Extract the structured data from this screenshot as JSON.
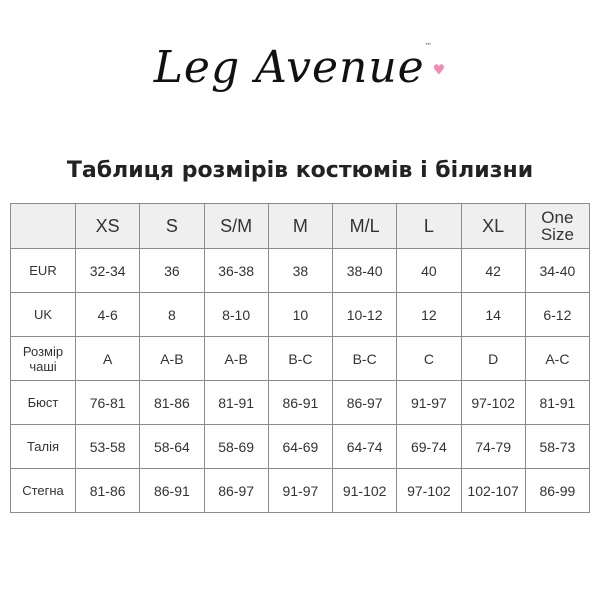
{
  "logo": {
    "text": "Leg Avenue",
    "trademark": "™",
    "heart_color": "#f08cb4"
  },
  "title": "Таблиця розмірів костюмів і білизни",
  "table": {
    "headers": [
      "",
      "XS",
      "S",
      "S/M",
      "M",
      "M/L",
      "L",
      "XL",
      "One Size"
    ],
    "rows": [
      {
        "label": "EUR",
        "values": [
          "32-34",
          "36",
          "36-38",
          "38",
          "38-40",
          "40",
          "42",
          "34-40"
        ]
      },
      {
        "label": "UK",
        "values": [
          "4-6",
          "8",
          "8-10",
          "10",
          "10-12",
          "12",
          "14",
          "6-12"
        ]
      },
      {
        "label": "Розмір чаші",
        "values": [
          "A",
          "A-B",
          "A-B",
          "B-C",
          "B-C",
          "C",
          "D",
          "A-C"
        ]
      },
      {
        "label": "Бюст",
        "values": [
          "76-81",
          "81-86",
          "81-91",
          "86-91",
          "86-97",
          "91-97",
          "97-102",
          "81-91"
        ]
      },
      {
        "label": "Талія",
        "values": [
          "53-58",
          "58-64",
          "58-69",
          "64-69",
          "64-74",
          "69-74",
          "74-79",
          "58-73"
        ]
      },
      {
        "label": "Стегна",
        "values": [
          "81-86",
          "86-91",
          "86-97",
          "91-97",
          "91-102",
          "97-102",
          "102-107",
          "86-99"
        ]
      }
    ]
  }
}
